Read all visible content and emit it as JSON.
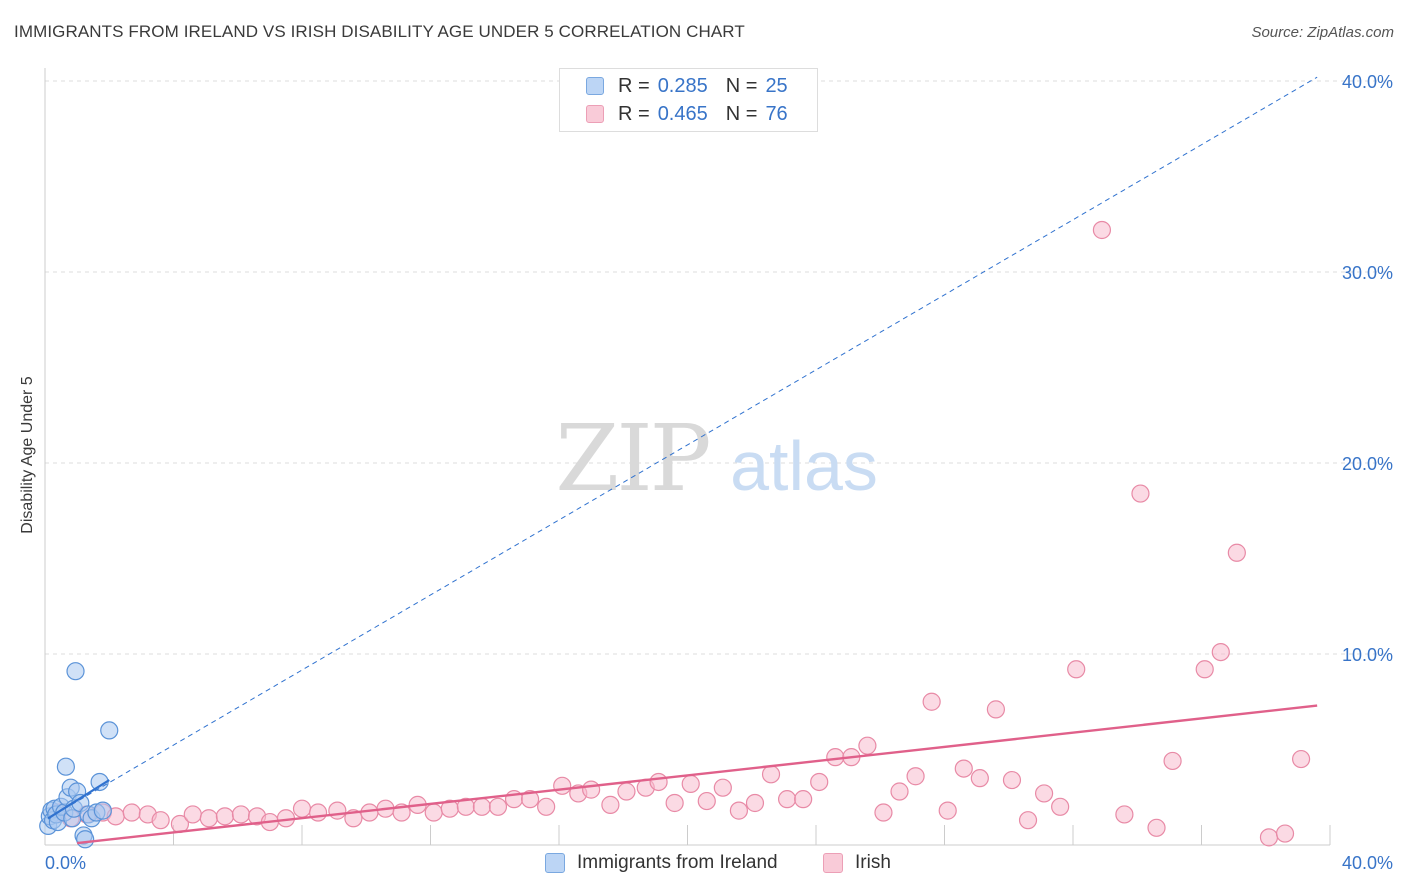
{
  "title": "IMMIGRANTS FROM IRELAND VS IRISH DISABILITY AGE UNDER 5 CORRELATION CHART",
  "source": "Source: ZipAtlas.com",
  "watermark": {
    "zip": "ZIP",
    "atlas": "atlas"
  },
  "legend": {
    "rows": [
      {
        "r_label": "R =",
        "r_value": "0.285",
        "n_label": "N =",
        "n_value": "25"
      },
      {
        "r_label": "R =",
        "r_value": "0.465",
        "n_label": "N =",
        "n_value": "76"
      }
    ]
  },
  "colors": {
    "blue_fill": "#a9c8f0",
    "blue_stroke": "#5b93d8",
    "blue_line": "#3072cf",
    "pink_fill": "#f7bccd",
    "pink_stroke": "#e88aa6",
    "pink_line": "#e0608a",
    "tick_text": "#3874c8",
    "grid": "#dcdcdc"
  },
  "chart_data": {
    "type": "scatter",
    "title": "IMMIGRANTS FROM IRELAND VS IRISH DISABILITY AGE UNDER 5 CORRELATION CHART",
    "xlabel": "",
    "ylabel": "Disability Age Under 5",
    "xlim": [
      0,
      40
    ],
    "ylim": [
      0,
      40
    ],
    "x_tick_labels": [
      "0.0%",
      "40.0%"
    ],
    "y_ticks": [
      10,
      20,
      30,
      40
    ],
    "y_tick_labels": [
      "10.0%",
      "20.0%",
      "30.0%",
      "40.0%"
    ],
    "legend_position": "top-center",
    "series": [
      {
        "name": "Immigrants from Ireland",
        "color": "blue",
        "R": 0.285,
        "N": 25,
        "trend_solid": [
          [
            0.1,
            1.4
          ],
          [
            2.0,
            3.4
          ]
        ],
        "trend_dashed": [
          [
            0.1,
            1.4
          ],
          [
            39.6,
            40.2
          ]
        ],
        "points": [
          [
            0.1,
            1.0
          ],
          [
            0.15,
            1.5
          ],
          [
            0.2,
            1.8
          ],
          [
            0.25,
            1.3
          ],
          [
            0.3,
            1.9
          ],
          [
            0.35,
            1.6
          ],
          [
            0.4,
            1.2
          ],
          [
            0.5,
            2.0
          ],
          [
            0.6,
            1.7
          ],
          [
            0.65,
            4.1
          ],
          [
            0.7,
            2.5
          ],
          [
            0.8,
            3.0
          ],
          [
            0.85,
            1.4
          ],
          [
            0.9,
            1.9
          ],
          [
            0.95,
            9.1
          ],
          [
            1.0,
            2.8
          ],
          [
            1.1,
            2.2
          ],
          [
            1.2,
            0.5
          ],
          [
            1.25,
            0.3
          ],
          [
            1.35,
            1.6
          ],
          [
            1.45,
            1.4
          ],
          [
            1.6,
            1.7
          ],
          [
            1.7,
            3.3
          ],
          [
            1.8,
            1.8
          ],
          [
            2.0,
            6.0
          ]
        ]
      },
      {
        "name": "Irish",
        "color": "pink",
        "R": 0.465,
        "N": 76,
        "trend": [
          [
            1.0,
            0.1
          ],
          [
            39.6,
            7.3
          ]
        ],
        "points": [
          [
            0.4,
            1.7
          ],
          [
            0.8,
            1.4
          ],
          [
            1.3,
            1.6
          ],
          [
            1.8,
            1.7
          ],
          [
            2.2,
            1.5
          ],
          [
            2.7,
            1.7
          ],
          [
            3.2,
            1.6
          ],
          [
            3.6,
            1.3
          ],
          [
            4.2,
            1.1
          ],
          [
            4.6,
            1.6
          ],
          [
            5.1,
            1.4
          ],
          [
            5.6,
            1.5
          ],
          [
            6.1,
            1.6
          ],
          [
            6.6,
            1.5
          ],
          [
            7.0,
            1.2
          ],
          [
            7.5,
            1.4
          ],
          [
            8.0,
            1.9
          ],
          [
            8.5,
            1.7
          ],
          [
            9.1,
            1.8
          ],
          [
            9.6,
            1.4
          ],
          [
            10.1,
            1.7
          ],
          [
            10.6,
            1.9
          ],
          [
            11.1,
            1.7
          ],
          [
            11.6,
            2.1
          ],
          [
            12.1,
            1.7
          ],
          [
            12.6,
            1.9
          ],
          [
            13.1,
            2.0
          ],
          [
            13.6,
            2.0
          ],
          [
            14.1,
            2.0
          ],
          [
            14.6,
            2.4
          ],
          [
            15.1,
            2.4
          ],
          [
            15.6,
            2.0
          ],
          [
            16.1,
            3.1
          ],
          [
            16.6,
            2.7
          ],
          [
            17.0,
            2.9
          ],
          [
            17.6,
            2.1
          ],
          [
            18.1,
            2.8
          ],
          [
            18.7,
            3.0
          ],
          [
            19.1,
            3.3
          ],
          [
            19.6,
            2.2
          ],
          [
            20.1,
            3.2
          ],
          [
            20.6,
            2.3
          ],
          [
            21.1,
            3.0
          ],
          [
            21.6,
            1.8
          ],
          [
            22.1,
            2.2
          ],
          [
            22.6,
            3.7
          ],
          [
            23.1,
            2.4
          ],
          [
            23.6,
            2.4
          ],
          [
            24.1,
            3.3
          ],
          [
            24.6,
            4.6
          ],
          [
            25.1,
            4.6
          ],
          [
            25.6,
            5.2
          ],
          [
            26.1,
            1.7
          ],
          [
            26.6,
            2.8
          ],
          [
            27.1,
            3.6
          ],
          [
            27.6,
            7.5
          ],
          [
            28.1,
            1.8
          ],
          [
            28.6,
            4.0
          ],
          [
            29.1,
            3.5
          ],
          [
            29.6,
            7.1
          ],
          [
            30.1,
            3.4
          ],
          [
            30.6,
            1.3
          ],
          [
            31.1,
            2.7
          ],
          [
            31.6,
            2.0
          ],
          [
            32.1,
            9.2
          ],
          [
            32.9,
            32.2
          ],
          [
            33.6,
            1.6
          ],
          [
            34.1,
            18.4
          ],
          [
            34.6,
            0.9
          ],
          [
            35.1,
            4.4
          ],
          [
            36.1,
            9.2
          ],
          [
            36.6,
            10.1
          ],
          [
            37.1,
            15.3
          ],
          [
            38.1,
            0.4
          ],
          [
            38.6,
            0.6
          ],
          [
            39.1,
            4.5
          ]
        ]
      }
    ]
  },
  "bottom_legend": [
    {
      "label": "Immigrants from Ireland"
    },
    {
      "label": "Irish"
    }
  ]
}
